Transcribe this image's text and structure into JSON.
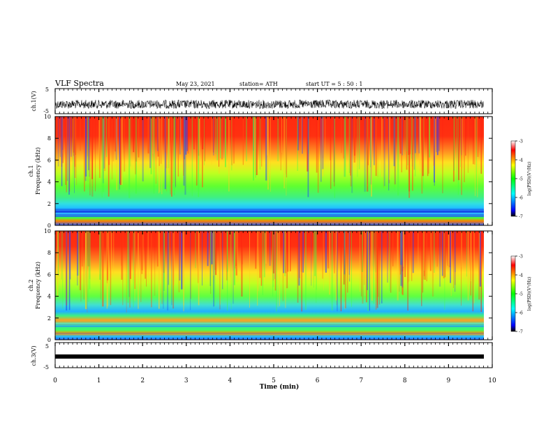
{
  "header": {
    "title": "VLF Spectra",
    "date": "May 23, 2021",
    "station": "station= ATH",
    "start": "start  UT =  5 : 50 : 1"
  },
  "chart_data": [
    {
      "type": "line",
      "panel": "ch1-waveform",
      "ylabel": "ch.1(V)",
      "ylim": [
        -5,
        5
      ],
      "yticks": [
        "5",
        "-5"
      ]
    },
    {
      "type": "heatmap",
      "panel": "ch1-spectrogram",
      "ylabel_top": "ch.1",
      "ylabel": "Frequency (kHz)",
      "ylim": [
        0,
        10
      ],
      "yticks": [
        "0",
        "2",
        "4",
        "6",
        "8",
        "10"
      ],
      "colorbar": {
        "label": "log(PSD)(V²/Hz)",
        "range": [
          -7,
          -3
        ],
        "ticks": [
          "-3",
          "-4",
          "-5",
          "-6",
          "-7"
        ]
      }
    },
    {
      "type": "heatmap",
      "panel": "ch2-spectrogram",
      "ylabel_top": "ch.2",
      "ylabel": "Frequency (kHz)",
      "ylim": [
        0,
        10
      ],
      "yticks": [
        "0",
        "2",
        "4",
        "6",
        "8",
        "10"
      ],
      "colorbar": {
        "label": "log(PSD)(V²/Hz)",
        "range": [
          -7,
          -3
        ],
        "ticks": [
          "-3",
          "-4",
          "-5",
          "-6",
          "-7"
        ]
      }
    },
    {
      "type": "line",
      "panel": "ch3-waveform",
      "ylabel": "ch.3(V)",
      "ylim": [
        -5,
        5
      ],
      "yticks": [
        "5",
        "-5"
      ]
    }
  ],
  "xaxis": {
    "label": "Time  (min)",
    "range": [
      0,
      10
    ],
    "ticks": [
      "0",
      "1",
      "2",
      "3",
      "4",
      "5",
      "6",
      "7",
      "8",
      "9",
      "10"
    ]
  },
  "colors": {
    "spectrogram_scale": [
      "#000000",
      "#0000ff",
      "#00ffff",
      "#00ff00",
      "#ffff00",
      "#ff0000",
      "#ffffff"
    ]
  }
}
